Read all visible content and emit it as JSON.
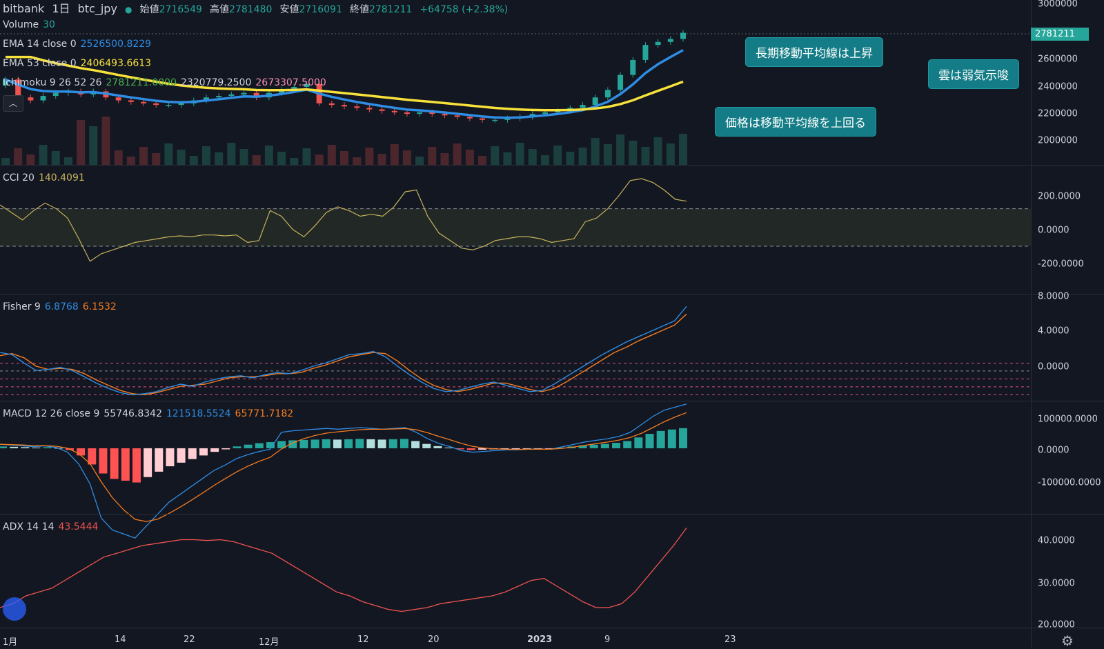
{
  "header": {
    "exchange": "bitbank",
    "interval": "1日",
    "symbol": "btc_jpy",
    "open_label": "始値",
    "open": "2716549",
    "high_label": "高値",
    "high": "2781480",
    "low_label": "安値",
    "low": "2716091",
    "close_label": "終値",
    "close": "2781211",
    "change": "+64758 (+2.38%)"
  },
  "legends": {
    "volume": {
      "label": "Volume",
      "value": "30"
    },
    "ema14": {
      "label": "EMA 14 close 0",
      "value": "2526500.8229"
    },
    "ema53": {
      "label": "EMA 53 close 0",
      "value": "2406493.6613"
    },
    "ichimoku": {
      "label": "Ichimoku 9 26 52 26",
      "v1": "2781211.0000",
      "v2": "2320779.2500",
      "v3": "2673307.5000"
    },
    "cci": {
      "label": "CCI 20",
      "value": "140.4091"
    },
    "fisher": {
      "label": "Fisher 9",
      "v1": "6.8768",
      "v2": "6.1532"
    },
    "macd": {
      "label": "MACD 12 26 close 9",
      "v1": "55746.8342",
      "v2": "121518.5524",
      "v3": "65771.7182"
    },
    "adx": {
      "label": "ADX 14 14",
      "value": "43.5444"
    }
  },
  "price_tag": "2781211",
  "callouts": {
    "long_ma_up": "長期移動平均線は上昇",
    "cloud_weak": "雲は弱気示唆",
    "price_above_ma": "価格は移動平均線を上回る"
  },
  "axes": {
    "price_ticks": [
      "3000000",
      "2800000",
      "2600000",
      "2400000",
      "2200000",
      "2000000"
    ],
    "cci_ticks": [
      "200.0000",
      "0.0000",
      "-200.0000"
    ],
    "fisher_ticks": [
      "8.0000",
      "4.0000",
      "0.0000"
    ],
    "macd_ticks": [
      "100000.0000",
      "0.0000",
      "-100000.0000"
    ],
    "adx_ticks": [
      "40.0000",
      "30.0000",
      "20.0000"
    ],
    "x_ticks": [
      "1月",
      "14",
      "22",
      "12月",
      "12",
      "20",
      "2023",
      "9",
      "23"
    ]
  },
  "colors": {
    "up": "#26a69a",
    "down": "#ef5350",
    "ema14": "#2f8de4",
    "ema53": "#f7e13a",
    "cci": "#c8b45c",
    "fisher1": "#2f8de4",
    "fisher2": "#f57c1f",
    "adx": "#ef5350"
  },
  "chart_data": [
    {
      "type": "candlestick",
      "title": "bitbank 1日 btc_jpy",
      "ylim": [
        1900000,
        3000000
      ],
      "closes": [
        2470000,
        2350000,
        2330000,
        2360000,
        2380000,
        2390000,
        2370000,
        2390000,
        2350000,
        2330000,
        2320000,
        2310000,
        2300000,
        2300000,
        2310000,
        2330000,
        2350000,
        2360000,
        2370000,
        2380000,
        2350000,
        2380000,
        2400000,
        2420000,
        2440000,
        2310000,
        2300000,
        2290000,
        2280000,
        2270000,
        2260000,
        2250000,
        2240000,
        2250000,
        2240000,
        2230000,
        2220000,
        2210000,
        2200000,
        2200000,
        2210000,
        2220000,
        2240000,
        2250000,
        2260000,
        2280000,
        2300000,
        2350000,
        2400000,
        2500000,
        2600000,
        2700000,
        2720000,
        2740000,
        2781211
      ],
      "volume_value": "30"
    },
    {
      "type": "line",
      "title": "CCI 20",
      "ylim": [
        -350,
        330
      ],
      "values": [
        120,
        80,
        40,
        90,
        130,
        100,
        50,
        -60,
        -180,
        -140,
        -120,
        -100,
        -80,
        -70,
        -60,
        -50,
        -45,
        -50,
        -40,
        -40,
        -45,
        -40,
        -80,
        -70,
        90,
        60,
        -10,
        -50,
        10,
        80,
        110,
        90,
        60,
        70,
        60,
        110,
        190,
        200,
        60,
        -30,
        -70,
        -110,
        -120,
        -100,
        -70,
        -60,
        -50,
        -50,
        -60,
        -80,
        -70,
        -60,
        30,
        50,
        100,
        170,
        250,
        260,
        240,
        200,
        150,
        140
      ]
    },
    {
      "type": "line",
      "title": "Fisher 9",
      "ylim": [
        -2,
        8
      ],
      "series": [
        {
          "name": "Fisher",
          "values": [
            2.5,
            2.3,
            1.5,
            0.8,
            0.9,
            1.1,
            0.8,
            0.2,
            -0.4,
            -0.9,
            -1.3,
            -1.5,
            -1.4,
            -1.2,
            -0.8,
            -0.5,
            -0.7,
            -0.3,
            0.0,
            0.2,
            0.3,
            0.1,
            0.4,
            0.6,
            0.5,
            0.8,
            1.2,
            1.5,
            1.9,
            2.3,
            2.4,
            2.6,
            2.1,
            1.2,
            0.4,
            -0.3,
            -0.9,
            -1.2,
            -1.1,
            -0.8,
            -0.5,
            -0.3,
            -0.6,
            -0.9,
            -1.2,
            -1.1,
            -0.5,
            0.2,
            0.9,
            1.6,
            2.3,
            2.9,
            3.5,
            4.0,
            4.5,
            5.0,
            5.5,
            6.8768
          ]
        },
        {
          "name": "Trigger",
          "values": [
            2.2,
            2.4,
            2.0,
            1.2,
            0.9,
            1.0,
            0.9,
            0.5,
            -0.1,
            -0.6,
            -1.1,
            -1.4,
            -1.5,
            -1.3,
            -1.0,
            -0.7,
            -0.6,
            -0.5,
            -0.2,
            0.1,
            0.2,
            0.2,
            0.3,
            0.5,
            0.5,
            0.6,
            1.0,
            1.3,
            1.7,
            2.1,
            2.3,
            2.5,
            2.4,
            1.7,
            0.8,
            0.0,
            -0.6,
            -1.0,
            -1.2,
            -1.0,
            -0.7,
            -0.4,
            -0.4,
            -0.7,
            -1.0,
            -1.2,
            -0.9,
            -0.3,
            0.4,
            1.1,
            1.8,
            2.5,
            3.0,
            3.6,
            4.1,
            4.6,
            5.1,
            6.1532
          ]
        }
      ]
    },
    {
      "type": "bar",
      "title": "MACD 12 26 close 9",
      "ylim": [
        -180000,
        130000
      ],
      "histogram": [
        5000,
        4000,
        3000,
        2000,
        3000,
        1000,
        -5000,
        -20000,
        -45000,
        -70000,
        -85000,
        -90000,
        -95000,
        -80000,
        -65000,
        -50000,
        -40000,
        -30000,
        -20000,
        -10000,
        -3000,
        5000,
        10000,
        14000,
        17000,
        20000,
        22000,
        23000,
        24000,
        25000,
        24000,
        25000,
        26000,
        25000,
        24000,
        25000,
        26000,
        20000,
        12000,
        6000,
        2000,
        -3000,
        -5000,
        -4000,
        -3000,
        -2000,
        -2000,
        -1000,
        -1000,
        -1000,
        2000,
        5000,
        8000,
        10000,
        12000,
        15000,
        20000,
        30000,
        40000,
        48000,
        52000,
        55746
      ]
    },
    {
      "type": "line",
      "title": "ADX 14 14",
      "ylim": [
        18,
        47
      ],
      "values": [
        23,
        24,
        26,
        27,
        28,
        30,
        32,
        34,
        36,
        37,
        38,
        39,
        39.5,
        40,
        40.5,
        40.5,
        40.3,
        40.5,
        40,
        39,
        38,
        37,
        35,
        33,
        31,
        29,
        27,
        26,
        24.5,
        23.5,
        22.5,
        22,
        22.5,
        23,
        24,
        24.5,
        25,
        25.5,
        26,
        27,
        28.5,
        30,
        30.5,
        28.5,
        26.5,
        24.5,
        23,
        23,
        24,
        27,
        31,
        35,
        39,
        43.5444
      ]
    }
  ]
}
